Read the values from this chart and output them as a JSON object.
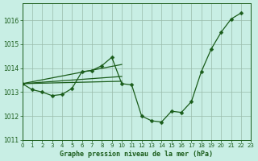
{
  "title": "Graphe pression niveau de la mer (hPa)",
  "background_color": "#c8eee4",
  "grid_color": "#99bbaa",
  "line_color": "#1a5c1a",
  "xlim": [
    0,
    23
  ],
  "ylim": [
    1011,
    1016.7
  ],
  "yticks": [
    1011,
    1012,
    1013,
    1014,
    1015,
    1016
  ],
  "xticks": [
    0,
    1,
    2,
    3,
    4,
    5,
    6,
    7,
    8,
    9,
    10,
    11,
    12,
    13,
    14,
    15,
    16,
    17,
    18,
    19,
    20,
    21,
    22,
    23
  ],
  "main_line": {
    "x": [
      0,
      1,
      2,
      3,
      4,
      5,
      6,
      7,
      8,
      9,
      10,
      11,
      12,
      13,
      14,
      15,
      16,
      17,
      18,
      19,
      20,
      21,
      22
    ],
    "y": [
      1013.35,
      1013.1,
      1013.0,
      1012.85,
      1012.9,
      1013.15,
      1013.85,
      1013.9,
      1014.1,
      1014.45,
      1013.35,
      1013.3,
      1012.0,
      1011.8,
      1011.75,
      1012.2,
      1012.15,
      1012.6,
      1013.85,
      1014.8,
      1015.5,
      1016.05,
      1016.3
    ]
  },
  "straight_lines": [
    {
      "x": [
        0,
        10
      ],
      "y": [
        1013.35,
        1014.15
      ]
    },
    {
      "x": [
        0,
        10
      ],
      "y": [
        1013.35,
        1013.65
      ]
    },
    {
      "x": [
        0,
        10
      ],
      "y": [
        1013.35,
        1013.45
      ]
    }
  ]
}
